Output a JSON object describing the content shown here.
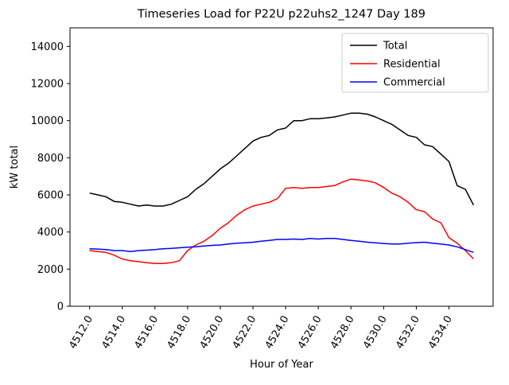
{
  "figure": {
    "background": "#ffffff"
  },
  "chart_data": {
    "type": "line",
    "title": "Timeseries Load for P22U p22uhs2_1247  Day 189",
    "xlabel": "Hour of Year",
    "ylabel": "kW total",
    "xlim": [
      4510.8,
      4536.7
    ],
    "ylim": [
      0,
      15000
    ],
    "grid": false,
    "legend_position": "upper right",
    "legend_border_color": "#cccccc",
    "x_ticks": [
      4512,
      4514,
      4516,
      4518,
      4520,
      4522,
      4524,
      4526,
      4528,
      4530,
      4532,
      4534
    ],
    "x_tick_labels": [
      "4512.0",
      "4514.0",
      "4516.0",
      "4518.0",
      "4520.0",
      "4522.0",
      "4524.0",
      "4526.0",
      "4528.0",
      "4530.0",
      "4532.0",
      "4534.0"
    ],
    "y_ticks": [
      0,
      2000,
      4000,
      6000,
      8000,
      10000,
      12000,
      14000
    ],
    "y_tick_labels": [
      "0",
      "2000",
      "4000",
      "6000",
      "8000",
      "10000",
      "12000",
      "14000"
    ],
    "x": [
      4512.0,
      4512.5,
      4513.0,
      4513.5,
      4514.0,
      4514.5,
      4515.0,
      4515.5,
      4516.0,
      4516.5,
      4517.0,
      4517.5,
      4518.0,
      4518.5,
      4519.0,
      4519.5,
      4520.0,
      4520.5,
      4521.0,
      4521.5,
      4522.0,
      4522.5,
      4523.0,
      4523.5,
      4524.0,
      4524.5,
      4525.0,
      4525.5,
      4526.0,
      4526.5,
      4527.0,
      4527.5,
      4528.0,
      4528.5,
      4529.0,
      4529.5,
      4530.0,
      4530.5,
      4531.0,
      4531.5,
      4532.0,
      4532.5,
      4533.0,
      4533.5,
      4534.0,
      4534.5,
      4535.0,
      4535.5
    ],
    "series": [
      {
        "name": "Total",
        "color": "#000000",
        "values": [
          6100,
          6000,
          5900,
          5650,
          5600,
          5500,
          5400,
          5450,
          5400,
          5400,
          5500,
          5700,
          5900,
          6300,
          6600,
          7000,
          7400,
          7700,
          8100,
          8500,
          8900,
          9100,
          9200,
          9500,
          9600,
          10000,
          10000,
          10100,
          10100,
          10150,
          10200,
          10300,
          10400,
          10400,
          10350,
          10200,
          10000,
          9800,
          9500,
          9200,
          9100,
          8700,
          8600,
          8200,
          7800,
          6500,
          6300,
          5450
        ]
      },
      {
        "name": "Residential",
        "color": "#ff0000",
        "values": [
          3000,
          2950,
          2900,
          2750,
          2550,
          2450,
          2400,
          2350,
          2300,
          2300,
          2350,
          2450,
          3000,
          3300,
          3500,
          3800,
          4200,
          4500,
          4900,
          5200,
          5400,
          5500,
          5600,
          5800,
          6350,
          6400,
          6350,
          6400,
          6400,
          6450,
          6500,
          6700,
          6850,
          6800,
          6750,
          6650,
          6400,
          6100,
          5900,
          5600,
          5200,
          5100,
          4700,
          4500,
          3700,
          3400,
          3000,
          2550
        ]
      },
      {
        "name": "Commercial",
        "color": "#0000ff",
        "values": [
          3100,
          3080,
          3050,
          3000,
          3000,
          2950,
          3000,
          3020,
          3050,
          3100,
          3120,
          3150,
          3180,
          3200,
          3250,
          3280,
          3300,
          3350,
          3400,
          3420,
          3450,
          3500,
          3550,
          3600,
          3600,
          3620,
          3600,
          3650,
          3620,
          3650,
          3650,
          3600,
          3550,
          3500,
          3450,
          3420,
          3380,
          3350,
          3350,
          3400,
          3430,
          3450,
          3400,
          3350,
          3300,
          3200,
          3050,
          2900
        ]
      }
    ]
  }
}
